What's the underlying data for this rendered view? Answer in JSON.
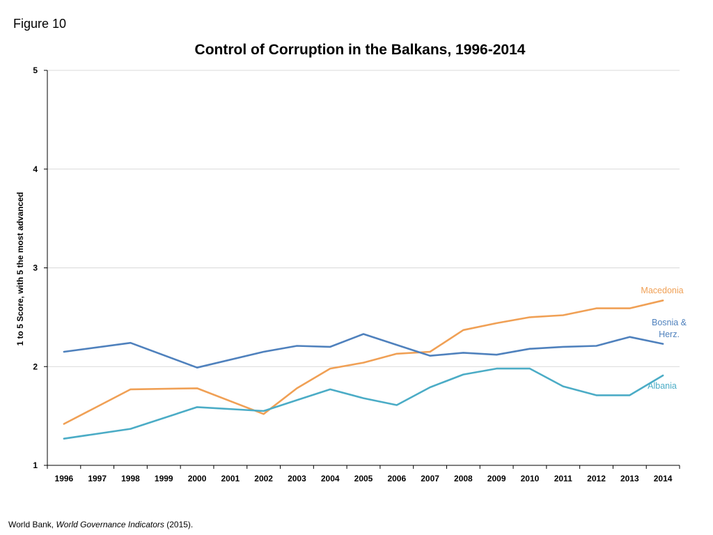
{
  "figure_label": "Figure 10",
  "source": {
    "prefix": "World Bank, ",
    "italic": "World Governance Indicators",
    "suffix": " (2015)."
  },
  "chart_data": {
    "type": "line",
    "title": "Control of Corruption in the Balkans, 1996-2014",
    "xlabel": "",
    "ylabel": "1 to 5 Score, with 5 the most advanced",
    "ylim": [
      1,
      5
    ],
    "yticks": [
      "1",
      "2",
      "3",
      "4",
      "5"
    ],
    "grid": true,
    "categories": [
      "1996",
      "1997",
      "1998",
      "1999",
      "2000",
      "2001",
      "2002",
      "2003",
      "2004",
      "2005",
      "2006",
      "2007",
      "2008",
      "2009",
      "2010",
      "2011",
      "2012",
      "2013",
      "2014"
    ],
    "series": [
      {
        "name": "Macedonia",
        "color": "#f0a055",
        "values": [
          1.42,
          null,
          1.77,
          null,
          1.78,
          null,
          1.52,
          1.78,
          1.98,
          2.04,
          2.13,
          2.15,
          2.37,
          2.44,
          2.5,
          2.52,
          2.59,
          2.59,
          2.67
        ]
      },
      {
        "name": "Bosnia & Herz.",
        "label_lines": [
          "Bosnia &",
          "Herz."
        ],
        "color": "#4f81bd",
        "values": [
          2.15,
          null,
          2.24,
          null,
          1.99,
          null,
          2.15,
          2.21,
          2.2,
          2.33,
          2.22,
          2.11,
          2.14,
          2.12,
          2.18,
          2.2,
          2.21,
          2.3,
          2.23
        ]
      },
      {
        "name": "Albania",
        "color": "#4bacc6",
        "values": [
          1.27,
          null,
          1.37,
          null,
          1.59,
          null,
          1.55,
          1.66,
          1.77,
          1.68,
          1.61,
          1.79,
          1.92,
          1.98,
          1.98,
          1.8,
          1.71,
          1.71,
          1.91
        ]
      }
    ]
  }
}
